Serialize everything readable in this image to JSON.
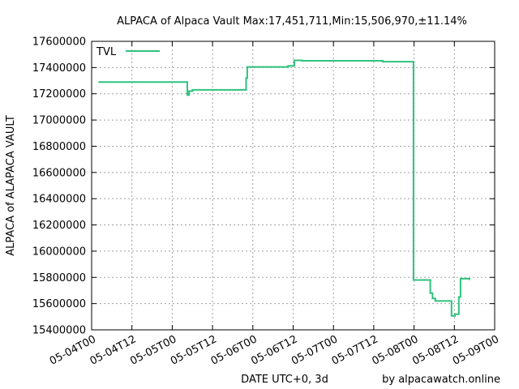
{
  "chart_data": {
    "type": "line",
    "title": "ALPACA of Alpaca Vault Max:17,451,711,Min:15,506,970,±11.14%",
    "xlabel": "DATE UTC+0, 3d",
    "ylabel": "ALPACA of ALAPACA VAULT",
    "credit": "by alpacawatch.online",
    "legend_position": "top-left",
    "grid": true,
    "xlim": [
      "2022-05-04T00:00",
      "2022-05-09T00:00"
    ],
    "ylim": [
      15400000,
      17600000
    ],
    "x_ticks": [
      "05-04T00",
      "05-04T12",
      "05-05T00",
      "05-05T12",
      "05-06T00",
      "05-06T12",
      "05-07T00",
      "05-07T12",
      "05-08T00",
      "05-08T12",
      "05-09T00"
    ],
    "y_ticks": [
      "17600000",
      "17400000",
      "17200000",
      "17000000",
      "16800000",
      "16600000",
      "16400000",
      "16200000",
      "16000000",
      "15800000",
      "15600000",
      "15400000"
    ],
    "series": [
      {
        "name": "TVL",
        "color": "#2ec27e",
        "step": true,
        "x": [
          "2022-05-04T02:00",
          "2022-05-05T04:30",
          "2022-05-05T05:00",
          "2022-05-05T06:00",
          "2022-05-05T07:00",
          "2022-05-05T22:00",
          "2022-05-05T22:20",
          "2022-05-06T10:30",
          "2022-05-06T12:20",
          "2022-05-06T14:40",
          "2022-05-07T14:40",
          "2022-05-07T23:50",
          "2022-05-08T04:50",
          "2022-05-08T05:30",
          "2022-05-08T06:20",
          "2022-05-08T11:10",
          "2022-05-08T12:10",
          "2022-05-08T13:20",
          "2022-05-08T13:50",
          "2022-05-08T16:30"
        ],
        "values": [
          17290000,
          17190000,
          17220000,
          17230000,
          17230000,
          17320000,
          17405000,
          17413000,
          17455000,
          17451711,
          17445000,
          15780000,
          15680000,
          15640000,
          15620000,
          15506970,
          15520000,
          15650000,
          15790000,
          15780000
        ]
      }
    ]
  }
}
